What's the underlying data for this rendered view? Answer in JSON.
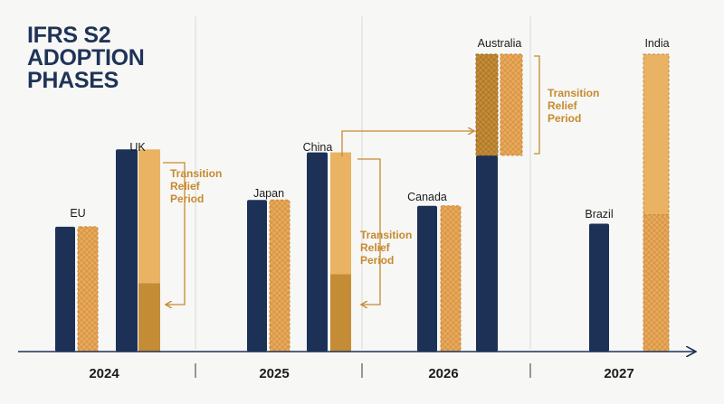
{
  "title_lines": [
    "IFRS S2",
    "ADOPTION",
    "PHASES"
  ],
  "colors": {
    "navy": "#1d3157",
    "light_gold": "#e9b363",
    "dark_gold": "#c58c36",
    "hatch_fill": "#eaa95a",
    "hatch_line": "#c88a3c",
    "annotation": "#c68a2e",
    "axis": "#1d3157",
    "divider": "#d9d9d9"
  },
  "chart_data": {
    "type": "bar",
    "title": "IFRS S2 ADOPTION PHASES",
    "x_axis_categories": [
      "2024",
      "2025",
      "2026",
      "2027"
    ],
    "ylim": [
      0,
      100
    ],
    "grid": false,
    "legend": "none",
    "jurisdictions": [
      {
        "label": "EU",
        "year": "2024",
        "navy": 42,
        "gold_total": 42,
        "transition": 0
      },
      {
        "label": "UK",
        "year": "2024",
        "navy": 68,
        "gold_total": 68,
        "transition": 23
      },
      {
        "label": "Japan",
        "year": "2025",
        "navy": 51,
        "gold_total": 51,
        "transition": 0
      },
      {
        "label": "China",
        "year": "2025",
        "navy": 67,
        "gold_total": 67,
        "transition": 26
      },
      {
        "label": "Canada",
        "year": "2026",
        "navy": 49,
        "gold_total": 49,
        "transition": 0
      },
      {
        "label": "Australia",
        "year": "2026",
        "navy": 66,
        "gold_total": 100,
        "transition": 34
      },
      {
        "label": "Brazil",
        "year": "2027",
        "navy": 43,
        "gold_total": 0,
        "transition": 0
      },
      {
        "label": "India",
        "year": "2027",
        "navy": 0,
        "gold_total": 100,
        "transition": 46
      }
    ],
    "annotations": [
      {
        "text": [
          "Transition",
          "Relief",
          "Period"
        ],
        "target": "UK"
      },
      {
        "text": [
          "Transition",
          "Relief",
          "Period"
        ],
        "target": "China"
      },
      {
        "text": [
          "Transition",
          "Relief",
          "Period"
        ],
        "target": "Australia"
      }
    ]
  }
}
